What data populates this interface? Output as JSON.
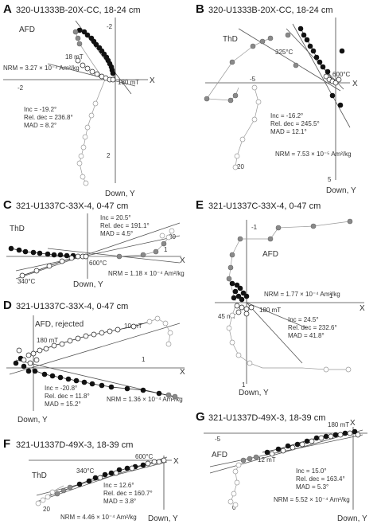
{
  "panels": [
    {
      "id": "A",
      "title": "320-U1333B-20X-CC, 18-24 cm",
      "method": "AFD",
      "stats": [
        "Inc = -19.2°",
        "Rel. dec = 236.8°",
        "MAD = 8.2°"
      ],
      "nrm": "NRM = 3.27 × 10⁻⁴ Am²/kg",
      "labels": [
        "18 mT",
        "180 mT"
      ],
      "ticks": [
        "-2",
        "-2",
        "2"
      ],
      "axis_x": "X",
      "axis_y": "Down, Y"
    },
    {
      "id": "B",
      "title": "320-U1333B-20X-CC, 18-24 cm",
      "method": "ThD",
      "stats": [
        "Inc = -16.2°",
        "Rel. dec = 245.5°",
        "MAD = 12.1°"
      ],
      "nrm": "NRM = 7.53 × 10⁻⁵ Am²/kg",
      "labels": [
        "325°C",
        "600°C",
        "20"
      ],
      "ticks": [
        "-5",
        "5"
      ],
      "axis_x": "X",
      "axis_y": "Down, Y"
    },
    {
      "id": "C",
      "title": "321-U1337C-33X-4, 0-47 cm",
      "method": "ThD",
      "stats": [
        "Inc = 20.5°",
        "Rel. dec = 191.1°",
        "MAD = 4.5°"
      ],
      "nrm": "NRM = 1.18 × 10⁻⁴ Am²/kg",
      "labels": [
        "600°C",
        "340°C",
        "20"
      ],
      "ticks": [
        "1"
      ],
      "axis_x": "X",
      "axis_y": "Down, Y"
    },
    {
      "id": "D",
      "title": "321-U1337C-33X-4, 0-47 cm",
      "method": "AFD, rejected",
      "stats": [
        "Inc = -20.8°",
        "Rel. dec = 11.8°",
        "MAD = 15.2°"
      ],
      "nrm": "NRM = 1.36 × 10⁻⁴ Am²/kg",
      "labels": [
        "10 mT",
        "180 mT"
      ],
      "ticks": [
        "1"
      ],
      "axis_x": "X",
      "axis_y": "Down, Y"
    },
    {
      "id": "E",
      "title": "321-U1337C-33X-4, 0-47 cm",
      "method": "AFD",
      "stats": [
        "Inc = 24.5°",
        "Rel. dec = 232.6°",
        "MAD = 41.8°"
      ],
      "nrm": "NRM = 1.77 × 10⁻⁴ Am²/kg",
      "labels": [
        "45 mT",
        "180 mT"
      ],
      "ticks": [
        "-1",
        "1",
        "1"
      ],
      "axis_x": "X",
      "axis_y": "Down, Y"
    },
    {
      "id": "F",
      "title": "321-U1337D-49X-3, 18-39 cm",
      "method": "ThD",
      "stats": [
        "Inc = 12.6°",
        "Rel. dec = 160.7°",
        "MAD = 3.8°"
      ],
      "nrm": "NRM = 4.46 × 10⁻⁴ Am²/kg",
      "labels": [
        "340°C",
        "600°C",
        "20"
      ],
      "ticks": [],
      "axis_x": "X",
      "axis_y": "Down, Y"
    },
    {
      "id": "G",
      "title": "321-U1337D-49X-3, 18-39 cm",
      "method": "AFD",
      "stats": [
        "Inc = 15.0°",
        "Rel. dec = 163.4°",
        "MAD = 5.3°"
      ],
      "nrm": "NRM = 5.52 × 10⁻⁴ Am²/kg",
      "labels": [
        "180 mT",
        "12 mT",
        "0"
      ],
      "ticks": [
        "-5"
      ],
      "axis_x": "X",
      "axis_y": "Down, Y"
    }
  ],
  "colors": {
    "horizontal_projection": "#111111",
    "vertical_projection": "#ffffff",
    "rejected_points": "#8a8a8a",
    "lines": "#555555"
  }
}
